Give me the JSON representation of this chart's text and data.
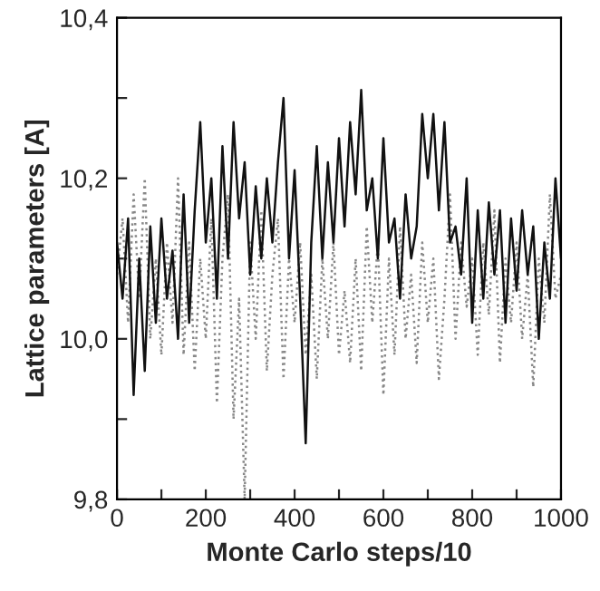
{
  "chart_data": {
    "type": "line",
    "xlabel": "Monte Carlo steps/10",
    "ylabel": "Lattice parameters [A]",
    "x": [
      0,
      12.5,
      25,
      37.5,
      50,
      62.5,
      75,
      87.5,
      100,
      112.5,
      125,
      137.5,
      150,
      162.5,
      175,
      187.5,
      200,
      212.5,
      225,
      237.5,
      250,
      262.5,
      275,
      287.5,
      300,
      312.5,
      325,
      337.5,
      350,
      362.5,
      375,
      387.5,
      400,
      412.5,
      425,
      437.5,
      450,
      462.5,
      475,
      487.5,
      500,
      512.5,
      525,
      537.5,
      550,
      562.5,
      575,
      587.5,
      600,
      612.5,
      625,
      637.5,
      650,
      662.5,
      675,
      687.5,
      700,
      712.5,
      725,
      737.5,
      750,
      762.5,
      775,
      787.5,
      800,
      812.5,
      825,
      837.5,
      850,
      862.5,
      875,
      887.5,
      900,
      912.5,
      925,
      937.5,
      950,
      962.5,
      975,
      987.5,
      1000
    ],
    "series": [
      {
        "color": "#888888",
        "line_style": "dotted",
        "values": [
          10.08,
          10.15,
          10.02,
          10.18,
          10.05,
          10.2,
          10.0,
          10.1,
          9.98,
          10.12,
          10.02,
          10.2,
          9.98,
          10.12,
          9.96,
          10.1,
          10.0,
          10.15,
          9.92,
          10.1,
          10.18,
          9.9,
          10.05,
          9.8,
          10.12,
          10.0,
          10.16,
          9.96,
          10.08,
          10.15,
          9.95,
          10.1,
          10.02,
          10.12,
          9.98,
          10.08,
          9.95,
          10.1,
          10.0,
          10.12,
          9.98,
          10.06,
          9.97,
          10.1,
          9.96,
          10.14,
          10.02,
          10.12,
          9.93,
          10.1,
          9.98,
          10.14,
          10.0,
          10.08,
          9.97,
          10.12,
          10.02,
          10.1,
          9.95,
          10.05,
          10.18,
          10.0,
          10.12,
          10.04,
          10.1,
          9.98,
          10.12,
          10.03,
          10.16,
          9.97,
          10.1,
          10.02,
          10.12,
          10.0,
          10.08,
          9.94,
          10.1,
          10.02,
          10.18,
          10.05,
          10.08
        ]
      },
      {
        "color": "#111111",
        "line_style": "solid",
        "values": [
          10.12,
          10.05,
          10.15,
          9.93,
          10.1,
          9.96,
          10.14,
          10.02,
          10.15,
          10.05,
          10.11,
          10.0,
          10.18,
          10.02,
          10.16,
          10.27,
          10.12,
          10.2,
          10.05,
          10.24,
          10.1,
          10.27,
          10.15,
          10.22,
          10.08,
          10.19,
          10.1,
          10.2,
          10.12,
          10.22,
          10.3,
          10.1,
          10.21,
          10.05,
          9.87,
          10.12,
          10.24,
          10.1,
          10.22,
          10.12,
          10.25,
          10.14,
          10.27,
          10.18,
          10.31,
          10.16,
          10.2,
          10.1,
          10.25,
          10.12,
          10.15,
          10.05,
          10.18,
          10.1,
          10.14,
          10.28,
          10.2,
          10.28,
          10.16,
          10.27,
          10.12,
          10.14,
          10.08,
          10.2,
          10.02,
          10.16,
          10.05,
          10.17,
          10.08,
          10.16,
          10.02,
          10.15,
          10.06,
          10.16,
          10.08,
          10.14,
          10.0,
          10.12,
          10.05,
          10.2,
          10.1
        ]
      }
    ],
    "xlim": [
      0,
      1000
    ],
    "ylim": [
      9.8,
      10.4
    ],
    "xticks": [
      0,
      {
        "value": 100,
        "label": null
      },
      200,
      {
        "value": 300,
        "label": null
      },
      400,
      {
        "value": 500,
        "label": null
      },
      600,
      {
        "value": 700,
        "label": null
      },
      800,
      {
        "value": 900,
        "label": null
      },
      1000
    ],
    "yticks": [
      {
        "value": 9.8,
        "label": "9,8"
      },
      {
        "value": 9.9,
        "label": null
      },
      {
        "value": 10.0,
        "label": "10,0"
      },
      {
        "value": 10.1,
        "label": null
      },
      {
        "value": 10.2,
        "label": "10,2"
      },
      {
        "value": 10.3,
        "label": null
      },
      {
        "value": 10.4,
        "label": "10,4"
      }
    ],
    "grid": false,
    "legend": false
  }
}
